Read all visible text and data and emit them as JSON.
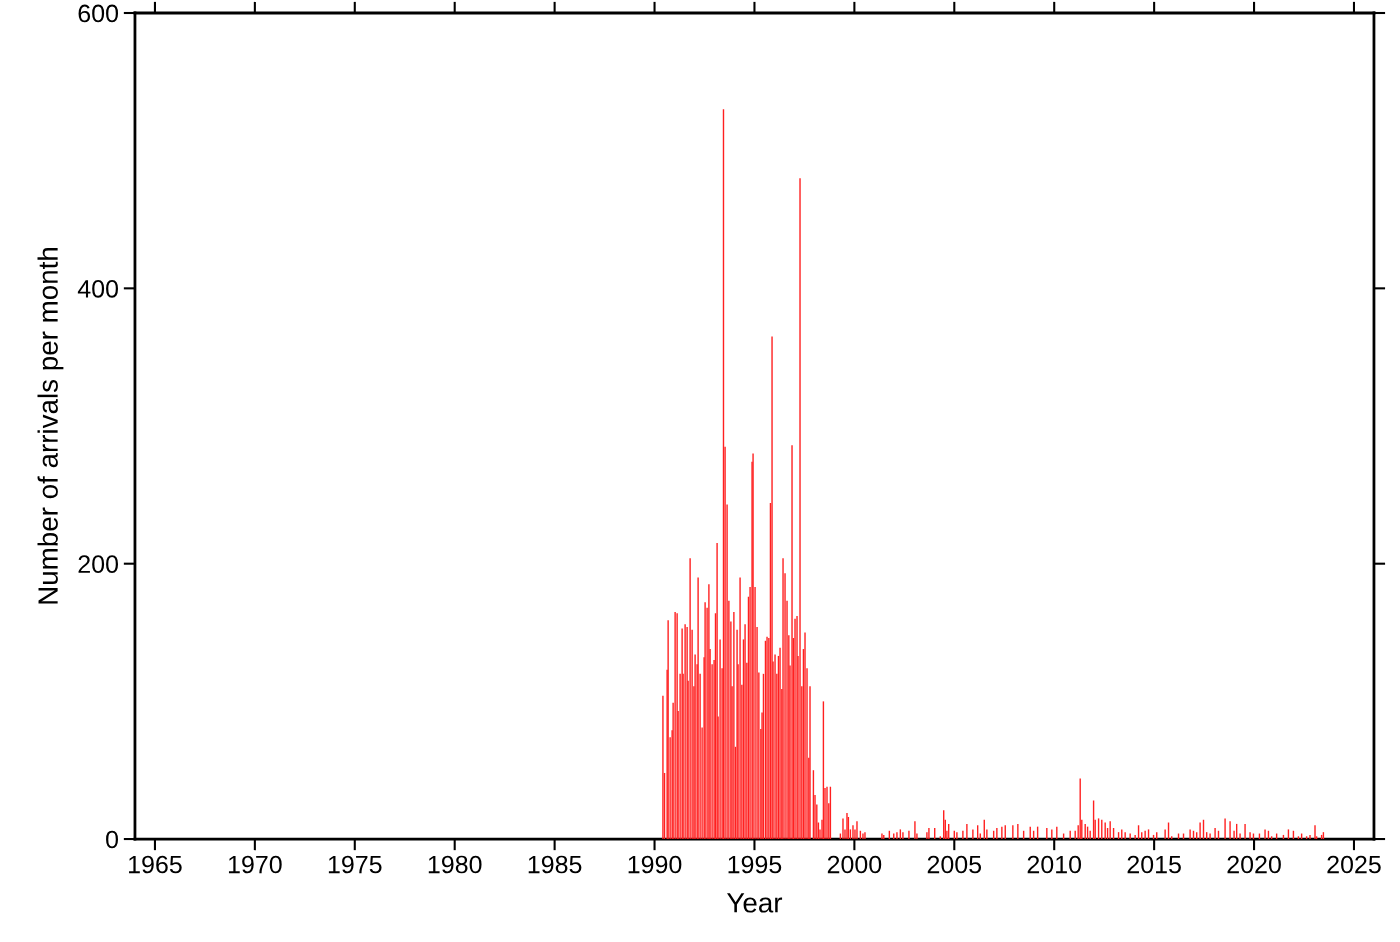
{
  "chart_data": {
    "type": "bar",
    "xlabel": "Year",
    "ylabel": "Number of arrivals per month",
    "xlim": [
      1964,
      2026
    ],
    "xticks": [
      1965,
      1970,
      1975,
      1980,
      1985,
      1990,
      1995,
      2000,
      2005,
      2010,
      2015,
      2020,
      2025
    ],
    "ylim": [
      0,
      600
    ],
    "yticks": [
      0,
      200,
      400,
      600
    ],
    "series": [
      {
        "color": "#ff2020",
        "x": [
          1990.42,
          1990.5,
          1990.63,
          1990.68,
          1990.78,
          1990.88,
          1990.93,
          1991.03,
          1991.13,
          1991.18,
          1991.28,
          1991.38,
          1991.43,
          1991.53,
          1991.63,
          1991.68,
          1991.78,
          1991.88,
          1991.97,
          1992.03,
          1992.13,
          1992.18,
          1992.28,
          1992.38,
          1992.48,
          1992.53,
          1992.63,
          1992.72,
          1992.78,
          1992.88,
          1992.98,
          1993.05,
          1993.13,
          1993.18,
          1993.28,
          1993.38,
          1993.45,
          1993.53,
          1993.63,
          1993.72,
          1993.82,
          1993.88,
          1993.97,
          1994.05,
          1994.13,
          1994.18,
          1994.28,
          1994.37,
          1994.45,
          1994.53,
          1994.62,
          1994.7,
          1994.78,
          1994.88,
          1994.93,
          1995.03,
          1995.13,
          1995.22,
          1995.32,
          1995.38,
          1995.45,
          1995.55,
          1995.63,
          1995.72,
          1995.8,
          1995.88,
          1995.93,
          1996.03,
          1996.12,
          1996.2,
          1996.28,
          1996.37,
          1996.43,
          1996.53,
          1996.63,
          1996.72,
          1996.78,
          1996.88,
          1996.95,
          1997.03,
          1997.13,
          1997.18,
          1997.28,
          1997.37,
          1997.45,
          1997.53,
          1997.63,
          1997.72,
          1997.78,
          1997.95,
          1998.03,
          1998.12,
          1998.2,
          1998.28,
          1998.38,
          1998.45,
          1998.53,
          1998.63,
          1998.72,
          1998.8,
          1999.3,
          1999.43,
          1999.53,
          1999.63,
          1999.7,
          1999.8,
          1999.93,
          2000.03,
          2000.13,
          2000.3,
          2000.43,
          2000.53,
          2001.38,
          2001.47,
          2001.75,
          2001.97,
          2002.13,
          2002.3,
          2002.43,
          2002.73,
          2003.03,
          2003.13,
          2003.63,
          2003.73,
          2004.02,
          2004.3,
          2004.47,
          2004.55,
          2004.63,
          2004.72,
          2005.0,
          2005.13,
          2005.43,
          2005.63,
          2005.93,
          2006.17,
          2006.3,
          2006.5,
          2006.63,
          2006.97,
          2007.13,
          2007.38,
          2007.55,
          2007.93,
          2008.18,
          2008.47,
          2008.8,
          2008.97,
          2009.17,
          2009.63,
          2009.88,
          2010.13,
          2010.47,
          2010.8,
          2011.05,
          2011.2,
          2011.3,
          2011.38,
          2011.55,
          2011.67,
          2011.8,
          2011.97,
          2012.05,
          2012.22,
          2012.38,
          2012.55,
          2012.67,
          2012.8,
          2012.97,
          2013.22,
          2013.38,
          2013.55,
          2013.8,
          2014.05,
          2014.22,
          2014.38,
          2014.55,
          2014.72,
          2014.97,
          2015.13,
          2015.55,
          2015.72,
          2015.88,
          2016.22,
          2016.47,
          2016.8,
          2016.97,
          2017.13,
          2017.3,
          2017.47,
          2017.63,
          2017.8,
          2018.05,
          2018.22,
          2018.55,
          2018.8,
          2019.0,
          2019.13,
          2019.3,
          2019.55,
          2019.8,
          2019.97,
          2020.27,
          2020.55,
          2020.72,
          2020.88,
          2021.13,
          2021.47,
          2021.72,
          2021.97,
          2022.22,
          2022.38,
          2022.63,
          2022.8,
          2023.05,
          2023.13,
          2023.38,
          2023.47
        ],
        "values": [
          104,
          48,
          123,
          159,
          74,
          79,
          99,
          165,
          164,
          93,
          120,
          153,
          120,
          156,
          154,
          115,
          204,
          152,
          111,
          134,
          127,
          190,
          120,
          81,
          132,
          172,
          168,
          185,
          138,
          127,
          130,
          164,
          215,
          89,
          145,
          124,
          530,
          285,
          243,
          173,
          158,
          111,
          165,
          67,
          152,
          127,
          190,
          112,
          145,
          156,
          128,
          176,
          183,
          274,
          280,
          183,
          154,
          121,
          80,
          92,
          120,
          144,
          147,
          146,
          244,
          365,
          129,
          134,
          120,
          133,
          139,
          109,
          204,
          193,
          173,
          148,
          126,
          286,
          146,
          160,
          162,
          133,
          480,
          111,
          138,
          150,
          124,
          59,
          111,
          50,
          32,
          25,
          12,
          7,
          14,
          100,
          37,
          38,
          26,
          38,
          4,
          15,
          7,
          19,
          16,
          7,
          10,
          7,
          13,
          6,
          4,
          5,
          4,
          3,
          6,
          4,
          5,
          7,
          5,
          6,
          13,
          4,
          5,
          8,
          8,
          2,
          21,
          14,
          6,
          11,
          6,
          5,
          6,
          11,
          7,
          10,
          4,
          14,
          7,
          6,
          8,
          9,
          10,
          10,
          11,
          6,
          9,
          6,
          9,
          8,
          7,
          9,
          4,
          6,
          6,
          10,
          44,
          14,
          11,
          9,
          6,
          28,
          14,
          15,
          14,
          12,
          8,
          13,
          8,
          5,
          7,
          5,
          4,
          3,
          10,
          5,
          6,
          7,
          3,
          5,
          7,
          12,
          2,
          4,
          4,
          7,
          6,
          5,
          12,
          14,
          5,
          4,
          8,
          6,
          15,
          13,
          6,
          11,
          4,
          11,
          5,
          4,
          4,
          7,
          6,
          2,
          4,
          3,
          7,
          6,
          2,
          4,
          2,
          3,
          10,
          2,
          3,
          5
        ]
      }
    ]
  }
}
